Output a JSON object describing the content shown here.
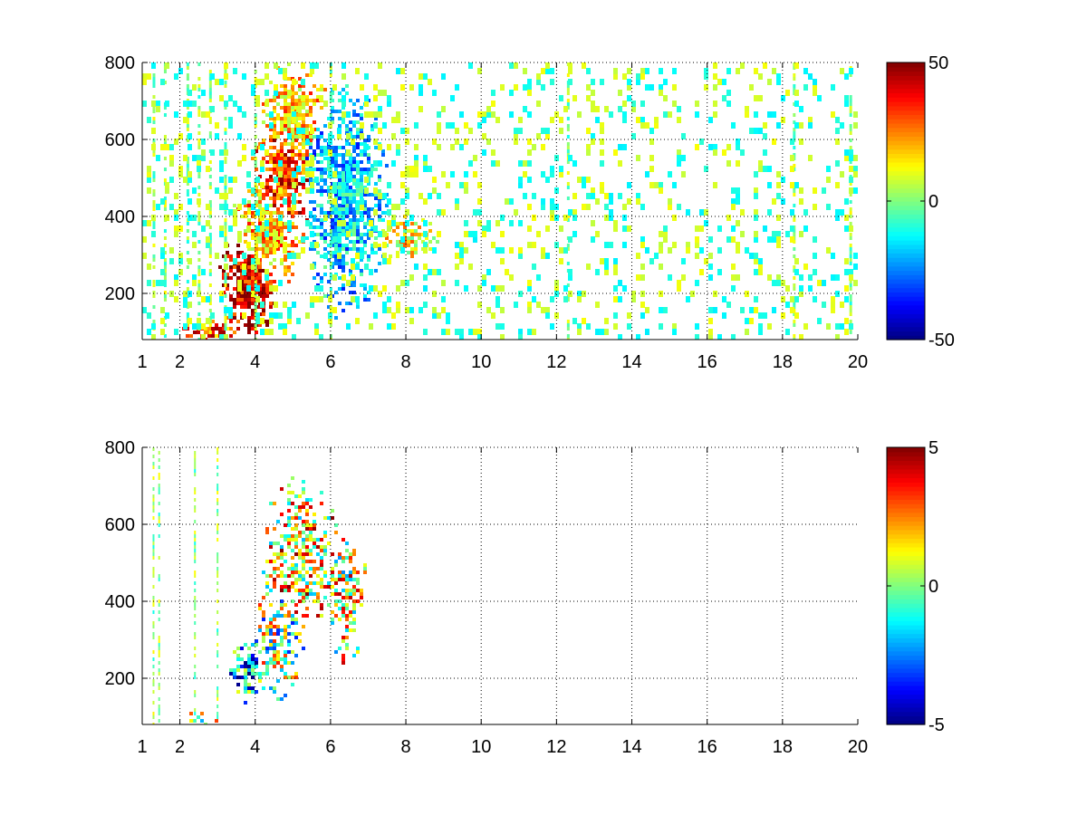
{
  "chart_data": [
    {
      "type": "heatmap",
      "title": "",
      "xlabel": "",
      "ylabel": "",
      "xlim": [
        1,
        20
      ],
      "ylim": [
        80,
        800
      ],
      "xticks": [
        1,
        2,
        4,
        6,
        8,
        10,
        12,
        14,
        16,
        18,
        20
      ],
      "xtick_labels": [
        "1",
        "2",
        "4",
        "6",
        "8",
        "10",
        "12",
        "14",
        "16",
        "18",
        "20"
      ],
      "yticks": [
        200,
        400,
        600,
        800
      ],
      "ytick_labels": [
        "200",
        "400",
        "600",
        "800"
      ],
      "grid": true,
      "colormap": "jet",
      "clim": [
        -50,
        50
      ],
      "colorbar_ticks": [
        -50,
        0,
        50
      ],
      "colorbar_labels": [
        "-50",
        "0",
        "50"
      ],
      "clusters": [
        {
          "x": 3.9,
          "y": 230,
          "sx": 0.45,
          "sy": 70,
          "value": 42,
          "density": 0.95
        },
        {
          "x": 4.8,
          "y": 500,
          "sx": 0.45,
          "sy": 90,
          "value": 32,
          "density": 0.9
        },
        {
          "x": 5.1,
          "y": 640,
          "sx": 0.5,
          "sy": 90,
          "value": 18,
          "density": 0.8
        },
        {
          "x": 4.3,
          "y": 350,
          "sx": 0.5,
          "sy": 80,
          "value": 20,
          "density": 0.85
        },
        {
          "x": 6.4,
          "y": 440,
          "sx": 0.6,
          "sy": 160,
          "value": -18,
          "density": 0.8
        },
        {
          "x": 5.6,
          "y": 560,
          "sx": 0.3,
          "sy": 80,
          "value": -20,
          "density": 0.6
        },
        {
          "x": 8.0,
          "y": 345,
          "sx": 0.5,
          "sy": 30,
          "value": 12,
          "density": 0.7
        },
        {
          "x": 2.8,
          "y": 100,
          "sx": 0.4,
          "sy": 15,
          "value": 30,
          "density": 0.8
        }
      ],
      "streaks": [
        1.3,
        1.6,
        2.2,
        2.5,
        2.8,
        3.2,
        4.0,
        6.0,
        12.3,
        18.3,
        19.8
      ]
    },
    {
      "type": "heatmap",
      "title": "",
      "xlabel": "",
      "ylabel": "",
      "xlim": [
        1,
        20
      ],
      "ylim": [
        80,
        800
      ],
      "xticks": [
        1,
        2,
        4,
        6,
        8,
        10,
        12,
        14,
        16,
        18,
        20
      ],
      "xtick_labels": [
        "1",
        "2",
        "4",
        "6",
        "8",
        "10",
        "12",
        "14",
        "16",
        "18",
        "20"
      ],
      "yticks": [
        200,
        400,
        600,
        800
      ],
      "ytick_labels": [
        "200",
        "400",
        "600",
        "800"
      ],
      "grid": true,
      "colormap": "jet",
      "clim": [
        -5,
        5
      ],
      "colorbar_ticks": [
        -5,
        0,
        5
      ],
      "colorbar_labels": [
        "-5",
        "0",
        "5"
      ],
      "clusters": [
        {
          "x": 3.8,
          "y": 220,
          "sx": 0.3,
          "sy": 45,
          "value": -2,
          "density": 0.7
        },
        {
          "x": 4.6,
          "y": 300,
          "sx": 0.4,
          "sy": 90,
          "value": 0,
          "density": 0.6
        },
        {
          "x": 5.2,
          "y": 520,
          "sx": 0.6,
          "sy": 120,
          "value": 1.5,
          "density": 0.55
        },
        {
          "x": 6.4,
          "y": 420,
          "sx": 0.35,
          "sy": 110,
          "value": 1,
          "density": 0.5
        },
        {
          "x": 2.6,
          "y": 95,
          "sx": 0.35,
          "sy": 10,
          "value": 0.8,
          "density": 0.5
        }
      ],
      "streaks": [
        1.3,
        1.45,
        2.4,
        3.0
      ]
    }
  ]
}
